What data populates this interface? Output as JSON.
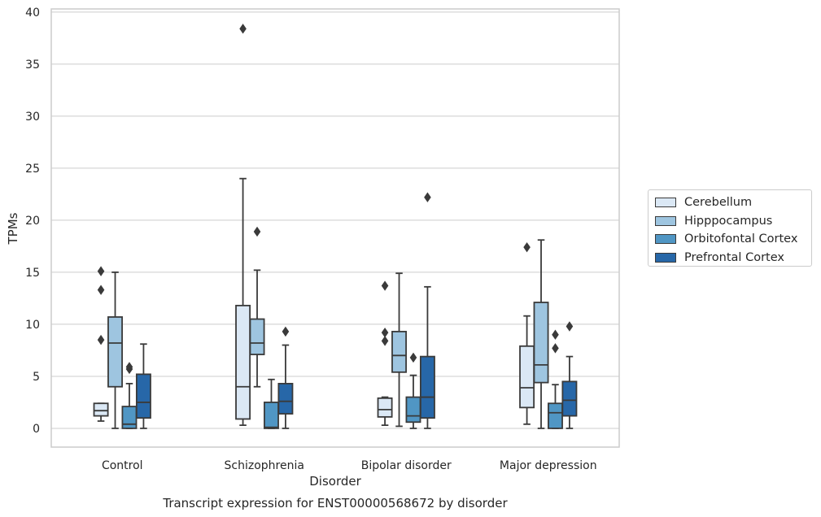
{
  "chart_data": {
    "type": "boxplot",
    "title": "Transcript expression for ENST00000568672 by disorder",
    "xlabel": "Disorder",
    "ylabel": "TPMs",
    "ylim": [
      -1.8,
      40.3
    ],
    "yticks": [
      0,
      5,
      10,
      15,
      20,
      25,
      30,
      35,
      40
    ],
    "grid": "horizontal",
    "legend_position": "right",
    "categories": [
      "Control",
      "Schizophrenia",
      "Bipolar disorder",
      "Major depression"
    ],
    "series": [
      {
        "name": "Cerebellum",
        "color": "#dbe8f5",
        "boxes": [
          {
            "whisker_low": 0.7,
            "q1": 1.2,
            "median": 1.7,
            "q3": 2.4,
            "whisker_high": 2.4,
            "outliers": [
              8.5,
              13.3,
              15.1
            ]
          },
          {
            "whisker_low": 0.3,
            "q1": 0.9,
            "median": 4.0,
            "q3": 11.8,
            "whisker_high": 24.0,
            "outliers": [
              38.4
            ]
          },
          {
            "whisker_low": 0.3,
            "q1": 1.1,
            "median": 1.8,
            "q3": 2.9,
            "whisker_high": 3.0,
            "outliers": [
              8.4,
              9.2,
              13.7
            ]
          },
          {
            "whisker_low": 0.4,
            "q1": 2.0,
            "median": 3.9,
            "q3": 7.9,
            "whisker_high": 10.8,
            "outliers": [
              17.4
            ]
          }
        ]
      },
      {
        "name": "Hipppocampus",
        "color": "#9ec5e0",
        "boxes": [
          {
            "whisker_low": 0.0,
            "q1": 4.0,
            "median": 8.2,
            "q3": 10.7,
            "whisker_high": 15.0,
            "outliers": []
          },
          {
            "whisker_low": 4.0,
            "q1": 7.1,
            "median": 8.2,
            "q3": 10.5,
            "whisker_high": 15.2,
            "outliers": [
              18.9
            ]
          },
          {
            "whisker_low": 0.2,
            "q1": 5.4,
            "median": 7.0,
            "q3": 9.3,
            "whisker_high": 14.9,
            "outliers": []
          },
          {
            "whisker_low": 0.0,
            "q1": 4.4,
            "median": 6.1,
            "q3": 12.1,
            "whisker_high": 18.1,
            "outliers": []
          }
        ]
      },
      {
        "name": "Orbitofontal Cortex",
        "color": "#5096c4",
        "boxes": [
          {
            "whisker_low": 0.0,
            "q1": 0.0,
            "median": 0.4,
            "q3": 2.1,
            "whisker_high": 4.3,
            "outliers": [
              5.7,
              5.9
            ]
          },
          {
            "whisker_low": 0.0,
            "q1": 0.0,
            "median": 0.1,
            "q3": 2.5,
            "whisker_high": 4.7,
            "outliers": []
          },
          {
            "whisker_low": 0.0,
            "q1": 0.6,
            "median": 1.2,
            "q3": 3.0,
            "whisker_high": 5.1,
            "outliers": [
              6.8
            ]
          },
          {
            "whisker_low": 0.0,
            "q1": 0.0,
            "median": 1.5,
            "q3": 2.4,
            "whisker_high": 4.2,
            "outliers": [
              7.7,
              9.0
            ]
          }
        ]
      },
      {
        "name": "Prefrontal Cortex",
        "color": "#2767a8",
        "boxes": [
          {
            "whisker_low": 0.0,
            "q1": 1.0,
            "median": 2.5,
            "q3": 5.2,
            "whisker_high": 8.1,
            "outliers": []
          },
          {
            "whisker_low": 0.0,
            "q1": 1.4,
            "median": 2.6,
            "q3": 4.3,
            "whisker_high": 8.0,
            "outliers": [
              9.3
            ]
          },
          {
            "whisker_low": 0.0,
            "q1": 1.0,
            "median": 3.0,
            "q3": 6.9,
            "whisker_high": 13.6,
            "outliers": [
              22.2
            ]
          },
          {
            "whisker_low": 0.0,
            "q1": 1.2,
            "median": 2.7,
            "q3": 4.5,
            "whisker_high": 6.9,
            "outliers": [
              9.8
            ]
          }
        ]
      }
    ]
  }
}
